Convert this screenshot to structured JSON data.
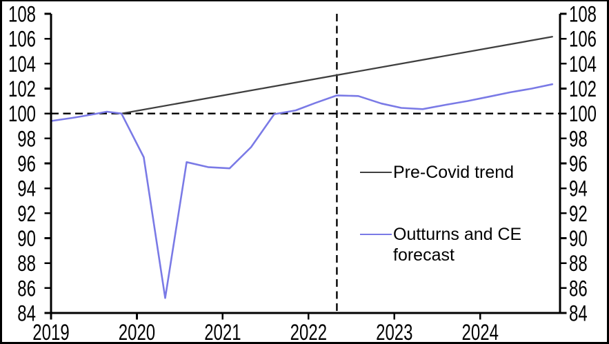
{
  "figure": {
    "background": "#ffffff",
    "border_color": "#000000"
  },
  "chart_data": {
    "type": "line",
    "title": "",
    "xlabel": "",
    "ylabel": "",
    "grid": false,
    "x_axis": {
      "range": [
        2019,
        2024.93
      ],
      "ticks": [
        2019,
        2020,
        2021,
        2022,
        2023,
        2024
      ],
      "tick_labels": [
        "2019",
        "2020",
        "2021",
        "2022",
        "2023",
        "2024"
      ]
    },
    "y_axis": {
      "range": [
        84,
        108
      ],
      "ticks": [
        84,
        86,
        88,
        90,
        92,
        94,
        96,
        98,
        100,
        102,
        104,
        106,
        108
      ],
      "mirrored_right_axis": true
    },
    "series": [
      {
        "name": "Pre-Covid trend",
        "color": "#3f3f3f",
        "stroke_width": 2.3,
        "points": [
          [
            2019.82,
            100.0
          ],
          [
            2024.84,
            106.16
          ]
        ]
      },
      {
        "name": "Outturns and CE forecast",
        "color": "#7a7ae6",
        "stroke_width": 2.6,
        "points": [
          [
            2019.0,
            99.4
          ],
          [
            2019.25,
            99.65
          ],
          [
            2019.5,
            99.95
          ],
          [
            2019.65,
            100.15
          ],
          [
            2019.82,
            100.0
          ],
          [
            2020.08,
            96.5
          ],
          [
            2020.33,
            85.2
          ],
          [
            2020.58,
            96.1
          ],
          [
            2020.83,
            95.7
          ],
          [
            2021.08,
            95.6
          ],
          [
            2021.33,
            97.3
          ],
          [
            2021.6,
            99.95
          ],
          [
            2021.85,
            100.25
          ],
          [
            2022.08,
            100.85
          ],
          [
            2022.33,
            101.45
          ],
          [
            2022.58,
            101.4
          ],
          [
            2022.85,
            100.8
          ],
          [
            2023.08,
            100.45
          ],
          [
            2023.33,
            100.35
          ],
          [
            2023.6,
            100.7
          ],
          [
            2023.85,
            101.0
          ],
          [
            2024.1,
            101.35
          ],
          [
            2024.35,
            101.7
          ],
          [
            2024.6,
            102.0
          ],
          [
            2024.84,
            102.35
          ]
        ]
      }
    ],
    "reference_lines": [
      {
        "orientation": "horizontal",
        "value": 100,
        "style": "dashed",
        "color": "#000000"
      },
      {
        "orientation": "vertical",
        "value": 2022.33,
        "style": "dashed",
        "color": "#000000"
      }
    ],
    "legend": {
      "position": "inside-right",
      "entries": [
        {
          "label": "Pre-Covid trend",
          "series_index": 0
        },
        {
          "label": "Outturns and CE forecast",
          "series_index": 1
        }
      ]
    }
  }
}
